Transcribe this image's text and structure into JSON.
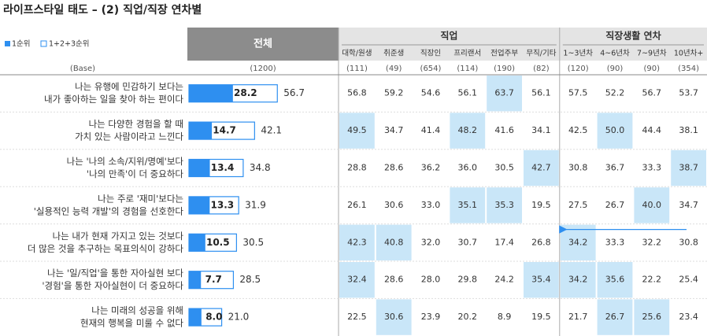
{
  "title": "라이프스타일 태도 – (2) 직업/직장 연차별",
  "legend": [
    "1순위",
    "1+2+3순위"
  ],
  "colors": {
    "rank1": "#2e8ff0",
    "highlight": "#c9e6f8"
  },
  "header": {
    "total": "전체",
    "groups": [
      {
        "label": "직업",
        "columns": [
          "대학/원생",
          "취준생",
          "직장인",
          "프리랜서",
          "전업주부",
          "무직/기타"
        ]
      },
      {
        "label": "직장생활 연차",
        "columns": [
          "1~3년차",
          "4~6년차",
          "7~9년차",
          "10년차+"
        ]
      }
    ]
  },
  "base": {
    "label": "(Base)",
    "total": "(1200)",
    "columns": [
      "(111)",
      "(49)",
      "(654)",
      "(114)",
      "(190)",
      "(82)",
      "(120)",
      "(90)",
      "(90)",
      "(354)"
    ]
  },
  "rows": [
    {
      "label": [
        "나는 유행에 민감하기 보다는",
        "내가 좋아하는 일을 찾아 하는 편이다"
      ],
      "values": [
        28.2,
        56.7
      ],
      "value_labels": [
        "28.2",
        "56.7"
      ],
      "cells": [
        "56.8",
        "59.2",
        "54.6",
        "56.1",
        "63.7",
        "56.1",
        "57.5",
        "52.2",
        "56.7",
        "53.7"
      ],
      "highlight": [
        4
      ]
    },
    {
      "label": [
        "나는 다양한 경험을 할 때",
        "가치 있는 사람이라고 느낀다"
      ],
      "values": [
        14.7,
        42.1
      ],
      "value_labels": [
        "14.7",
        "42.1"
      ],
      "cells": [
        "49.5",
        "34.7",
        "41.4",
        "48.2",
        "41.6",
        "34.1",
        "42.5",
        "50.0",
        "44.4",
        "38.1"
      ],
      "highlight": [
        0,
        3,
        7
      ]
    },
    {
      "label": [
        "나는 '나의 소속/지위/명예'보다",
        "'나의 만족'이 더 중요하다"
      ],
      "values": [
        13.4,
        34.8
      ],
      "value_labels": [
        "13.4",
        "34.8"
      ],
      "cells": [
        "28.8",
        "28.6",
        "36.2",
        "36.0",
        "30.5",
        "42.7",
        "30.8",
        "36.7",
        "33.3",
        "38.7"
      ],
      "highlight": [
        5,
        9
      ]
    },
    {
      "label": [
        "나는 주로 '재미'보다는",
        "'실용적인 능력 개발'의 경험을 선호한다"
      ],
      "values": [
        13.3,
        31.9
      ],
      "value_labels": [
        "13.3",
        "31.9"
      ],
      "cells": [
        "26.1",
        "30.6",
        "33.0",
        "35.1",
        "35.3",
        "19.5",
        "27.5",
        "26.7",
        "40.0",
        "34.7"
      ],
      "highlight": [
        3,
        4,
        8
      ]
    },
    {
      "label": [
        "나는 내가 현재 가지고 있는 것보다",
        "더 많은 것을 추구하는 목표의식이 강하다"
      ],
      "values": [
        10.5,
        30.5
      ],
      "value_labels": [
        "10.5",
        "30.5"
      ],
      "cells": [
        "42.3",
        "40.8",
        "32.0",
        "30.7",
        "17.4",
        "26.8",
        "34.2",
        "33.3",
        "32.2",
        "30.8"
      ],
      "highlight": [
        0,
        1,
        6
      ]
    },
    {
      "label": [
        "나는 '일/직업'을 통한 자아실현 보다",
        "'경험'을 통한 자아실현이 더 중요하다"
      ],
      "values": [
        7.7,
        28.5
      ],
      "value_labels": [
        "7.7",
        "28.5"
      ],
      "cells": [
        "32.4",
        "28.6",
        "28.0",
        "29.8",
        "24.2",
        "35.4",
        "34.2",
        "35.6",
        "22.2",
        "25.4"
      ],
      "highlight": [
        0,
        5,
        6,
        7
      ]
    },
    {
      "label": [
        "나는 미래의 성공을 위해",
        "현재의 행복을 미룰 수 없다"
      ],
      "values": [
        8.0,
        21.0
      ],
      "value_labels": [
        "8.0",
        "21.0"
      ],
      "cells": [
        "22.5",
        "30.6",
        "23.9",
        "20.2",
        "8.9",
        "19.5",
        "21.7",
        "26.7",
        "25.6",
        "23.4"
      ],
      "highlight": [
        1,
        7,
        8
      ]
    }
  ]
}
